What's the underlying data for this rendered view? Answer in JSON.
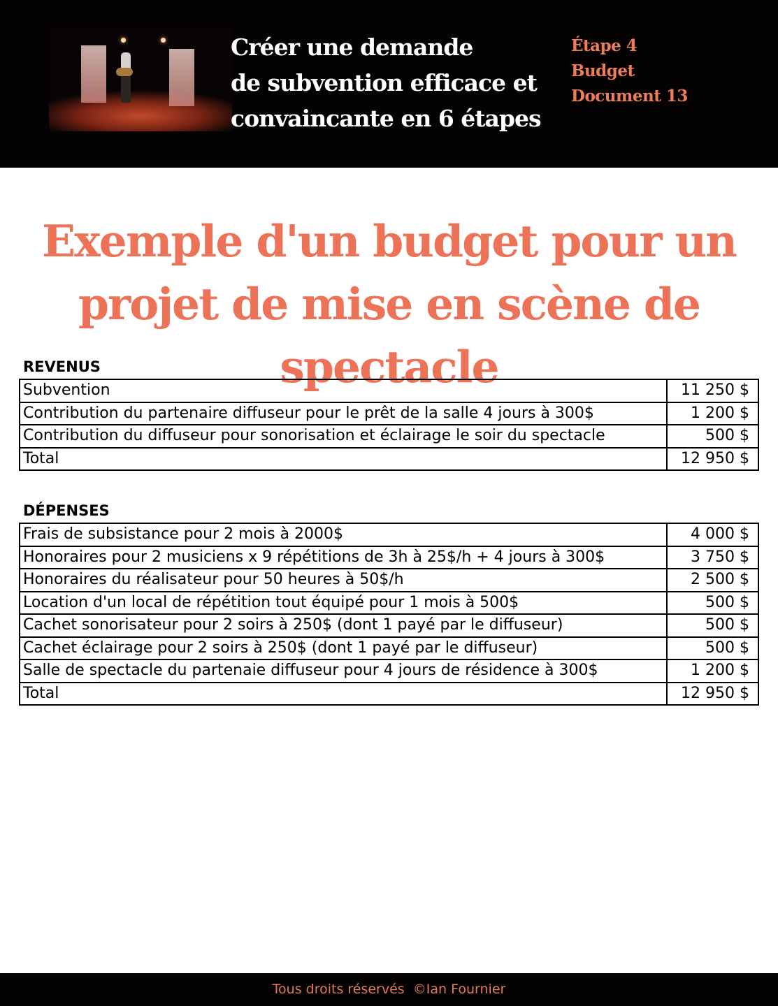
{
  "header": {
    "title_lines": [
      "Créer une demande",
      "de subvention efficace et",
      "convaincante en 6 étapes"
    ],
    "step": "Étape 4",
    "section": "Budget",
    "document": "Document 13",
    "photo": "stage-performer-with-guitar"
  },
  "title_lines": [
    "Exemple d'un budget pour un",
    "projet de mise en scène de spectacle"
  ],
  "revenus": {
    "label": "REVENUS",
    "rows": [
      {
        "desc": "Subvention",
        "amount": "11 250 $"
      },
      {
        "desc": "Contribution du partenaire diffuseur pour le prêt de la salle 4 jours à 300$",
        "amount": "1 200 $"
      },
      {
        "desc": "Contribution du diffuseur pour sonorisation et éclairage le soir du spectacle",
        "amount": "500 $"
      },
      {
        "desc": "Total",
        "amount": "12 950 $"
      }
    ]
  },
  "depenses": {
    "label": "DÉPENSES",
    "rows": [
      {
        "desc": "Frais de subsistance pour 2 mois à 2000$",
        "amount": "4 000 $"
      },
      {
        "desc": "Honoraires pour 2 musiciens x 9 répétitions de 3h à 25$/h + 4 jours à 300$",
        "amount": "3 750 $"
      },
      {
        "desc": "Honoraires du réalisateur pour 50 heures à 50$/h",
        "amount": "2 500 $"
      },
      {
        "desc": "Location d'un local de répétition tout équipé pour 1 mois à 500$",
        "amount": "500 $"
      },
      {
        "desc": "Cachet sonorisateur pour 2 soirs à 250$ (dont 1 payé par le diffuseur)",
        "amount": "500 $"
      },
      {
        "desc": "Cachet éclairage pour 2 soirs à 250$ (dont 1 payé par le diffuseur)",
        "amount": "500 $"
      },
      {
        "desc": "Salle de spectacle du partenaie diffuseur pour 4 jours de résidence à 300$",
        "amount": "1 200 $"
      },
      {
        "desc": "Total",
        "amount": "12 950 $"
      }
    ]
  },
  "footer": "Tous droits réservés  ©Ian Fournier",
  "colors": {
    "accent": "#ec7358",
    "header_bg": "#050204"
  }
}
